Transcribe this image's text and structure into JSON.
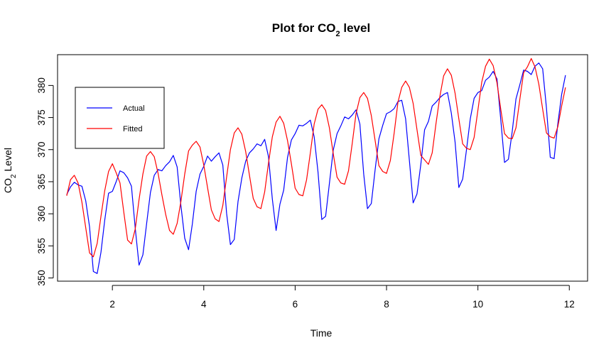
{
  "chart_data": {
    "type": "line",
    "title": "Plot for CO",
    "title_sub": "2",
    "title_tail": " level",
    "xlabel": "Time",
    "ylabel": "CO",
    "ylabel_sub": "2",
    "ylabel_tail": " Level",
    "xlim": [
      0.8,
      12.4
    ],
    "ylim": [
      349.5,
      384.8
    ],
    "x_ticks": [
      2,
      4,
      6,
      8,
      10,
      12
    ],
    "y_ticks": [
      350,
      355,
      360,
      365,
      370,
      375,
      380
    ],
    "legend_position": "top-left",
    "series": [
      {
        "name": "Actual",
        "color": "#0000ff",
        "x": [
          1.0,
          1.083,
          1.167,
          1.25,
          1.333,
          1.417,
          1.5,
          1.583,
          1.667,
          1.75,
          1.833,
          1.917,
          2.0,
          2.083,
          2.167,
          2.25,
          2.333,
          2.417,
          2.5,
          2.583,
          2.667,
          2.75,
          2.833,
          2.917,
          3.0,
          3.083,
          3.167,
          3.25,
          3.333,
          3.417,
          3.5,
          3.583,
          3.667,
          3.75,
          3.833,
          3.917,
          4.0,
          4.083,
          4.167,
          4.25,
          4.333,
          4.417,
          4.5,
          4.583,
          4.667,
          4.75,
          4.833,
          4.917,
          5.0,
          5.083,
          5.167,
          5.25,
          5.333,
          5.417,
          5.5,
          5.583,
          5.667,
          5.75,
          5.833,
          5.917,
          6.0,
          6.083,
          6.167,
          6.25,
          6.333,
          6.417,
          6.5,
          6.583,
          6.667,
          6.75,
          6.833,
          6.917,
          7.0,
          7.083,
          7.167,
          7.25,
          7.333,
          7.417,
          7.5,
          7.583,
          7.667,
          7.75,
          7.833,
          7.917,
          8.0,
          8.083,
          8.167,
          8.25,
          8.333,
          8.417,
          8.5,
          8.583,
          8.667,
          8.75,
          8.833,
          8.917,
          9.0,
          9.083,
          9.167,
          9.25,
          9.333,
          9.417,
          9.5,
          9.583,
          9.667,
          9.75,
          9.833,
          9.917,
          10.0,
          10.083,
          10.167,
          10.25,
          10.333,
          10.417,
          10.5,
          10.583,
          10.667,
          10.75,
          10.833,
          10.917,
          11.0,
          11.083,
          11.167,
          11.25,
          11.333,
          11.417,
          11.5,
          11.583,
          11.667,
          11.75,
          11.833,
          11.917
        ],
        "y": [
          363.0,
          364.2,
          364.9,
          364.5,
          364.3,
          362.0,
          358.0,
          351.0,
          350.7,
          354.0,
          359.0,
          363.2,
          363.5,
          365.0,
          366.7,
          366.4,
          365.6,
          364.3,
          357.8,
          352.0,
          353.6,
          358.5,
          363.3,
          366.0,
          366.9,
          366.7,
          367.5,
          368.1,
          369.1,
          367.3,
          361.3,
          356.2,
          354.4,
          358.4,
          363.5,
          366.2,
          367.4,
          369.0,
          368.2,
          368.9,
          369.5,
          367.6,
          360.1,
          355.2,
          356.0,
          361.9,
          365.6,
          368.2,
          369.5,
          370.1,
          370.9,
          370.6,
          371.6,
          368.9,
          362.3,
          357.4,
          361.5,
          363.7,
          368.8,
          371.5,
          372.5,
          373.8,
          373.7,
          374.1,
          374.6,
          372.0,
          366.5,
          359.1,
          359.6,
          364.7,
          369.9,
          372.5,
          373.7,
          375.1,
          374.8,
          375.4,
          376.2,
          374.0,
          366.2,
          360.8,
          361.6,
          366.9,
          371.7,
          373.8,
          375.6,
          375.9,
          376.4,
          377.5,
          377.7,
          374.8,
          368.3,
          361.7,
          363.1,
          367.7,
          373.1,
          374.4,
          376.8,
          377.4,
          378.1,
          378.6,
          378.9,
          375.7,
          371.2,
          364.1,
          365.4,
          370.0,
          374.8,
          378.0,
          378.9,
          379.2,
          380.8,
          381.3,
          382.2,
          381.0,
          374.7,
          368.0,
          368.5,
          372.8,
          377.9,
          380.1,
          382.4,
          382.2,
          381.7,
          383.0,
          383.5,
          382.6,
          376.5,
          368.8,
          368.6,
          374.1,
          378.6,
          381.6
        ]
      },
      {
        "name": "Fitted",
        "color": "#ff0000",
        "x": [
          1.0,
          1.083,
          1.167,
          1.25,
          1.333,
          1.417,
          1.5,
          1.583,
          1.667,
          1.75,
          1.833,
          1.917,
          2.0,
          2.083,
          2.167,
          2.25,
          2.333,
          2.417,
          2.5,
          2.583,
          2.667,
          2.75,
          2.833,
          2.917,
          3.0,
          3.083,
          3.167,
          3.25,
          3.333,
          3.417,
          3.5,
          3.583,
          3.667,
          3.75,
          3.833,
          3.917,
          4.0,
          4.083,
          4.167,
          4.25,
          4.333,
          4.417,
          4.5,
          4.583,
          4.667,
          4.75,
          4.833,
          4.917,
          5.0,
          5.083,
          5.167,
          5.25,
          5.333,
          5.417,
          5.5,
          5.583,
          5.667,
          5.75,
          5.833,
          5.917,
          6.0,
          6.083,
          6.167,
          6.25,
          6.333,
          6.417,
          6.5,
          6.583,
          6.667,
          6.75,
          6.833,
          6.917,
          7.0,
          7.083,
          7.167,
          7.25,
          7.333,
          7.417,
          7.5,
          7.583,
          7.667,
          7.75,
          7.833,
          7.917,
          8.0,
          8.083,
          8.167,
          8.25,
          8.333,
          8.417,
          8.5,
          8.583,
          8.667,
          8.75,
          8.833,
          8.917,
          9.0,
          9.083,
          9.167,
          9.25,
          9.333,
          9.417,
          9.5,
          9.583,
          9.667,
          9.75,
          9.833,
          9.917,
          10.0,
          10.083,
          10.167,
          10.25,
          10.333,
          10.417,
          10.5,
          10.583,
          10.667,
          10.75,
          10.833,
          10.917,
          11.0,
          11.083,
          11.167,
          11.25,
          11.333,
          11.417,
          11.5,
          11.583,
          11.667,
          11.75,
          11.833,
          11.917
        ],
        "y": [
          362.8,
          365.3,
          366.0,
          364.8,
          361.8,
          357.8,
          353.9,
          353.3,
          355.4,
          359.6,
          363.6,
          366.6,
          367.8,
          366.4,
          364.8,
          360.2,
          355.9,
          355.3,
          357.6,
          362.2,
          366.2,
          369.0,
          369.7,
          368.9,
          366.3,
          363.0,
          359.9,
          357.4,
          356.8,
          358.5,
          361.9,
          366.2,
          369.8,
          370.7,
          371.3,
          370.4,
          367.6,
          364.1,
          360.6,
          359.2,
          358.8,
          361.3,
          365.7,
          370.0,
          372.6,
          373.4,
          372.4,
          369.7,
          366.0,
          362.4,
          361.1,
          360.8,
          363.4,
          367.9,
          372.0,
          374.3,
          375.2,
          374.1,
          371.4,
          367.8,
          364.0,
          363.0,
          362.8,
          365.3,
          369.5,
          374.0,
          376.3,
          377.0,
          376.1,
          373.4,
          369.4,
          365.7,
          364.8,
          364.6,
          366.7,
          371.0,
          375.6,
          378.1,
          378.9,
          378.0,
          375.3,
          371.4,
          367.5,
          366.6,
          366.3,
          368.3,
          372.6,
          377.4,
          379.7,
          380.7,
          379.7,
          377.2,
          373.1,
          369.1,
          368.4,
          367.7,
          369.5,
          374.1,
          378.3,
          381.5,
          382.6,
          381.6,
          378.8,
          374.8,
          370.9,
          370.2,
          370.0,
          371.9,
          376.2,
          380.5,
          383.0,
          384.1,
          383.1,
          380.4,
          376.3,
          372.5,
          371.8,
          371.7,
          373.4,
          377.8,
          382.0,
          382.9,
          384.2,
          382.9,
          380.2,
          376.3,
          372.6,
          372.0,
          371.8,
          373.6,
          376.8,
          379.7
        ]
      }
    ]
  }
}
